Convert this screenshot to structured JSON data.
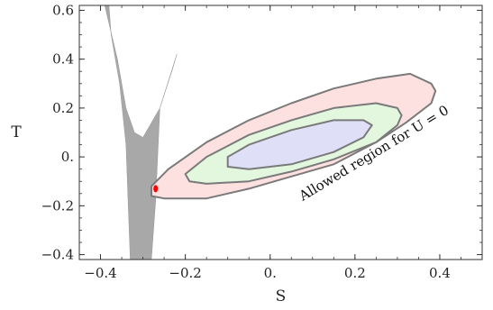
{
  "chart_data": {
    "type": "scatter",
    "title": "",
    "xlabel": "S",
    "ylabel": "T",
    "xlim": [
      -0.45,
      0.5
    ],
    "ylim": [
      -0.42,
      0.62
    ],
    "xticks": [
      -0.4,
      -0.2,
      0.0,
      0.2,
      0.4
    ],
    "xtick_labels": [
      "−0.4",
      "−0.2",
      "0.",
      "0.2",
      "0.4"
    ],
    "yticks": [
      -0.4,
      -0.2,
      0.0,
      0.2,
      0.4,
      0.6
    ],
    "ytick_labels": [
      "−0.4",
      "−0.2",
      "0.",
      "0.2",
      "0.4",
      "0.6"
    ],
    "grid": false,
    "annotation": "Allowed region for U = 0",
    "colors": {
      "outer_fill": "#fde0e0",
      "middle_fill": "#e2f7de",
      "inner_fill": "#dfe0f8",
      "contour_stroke": "#7a7a7a",
      "gray_region": "#a8a8a8",
      "red_point": "#ff0000"
    },
    "ellipses": [
      {
        "level": "outer",
        "boundary": [
          [
            -0.28,
            -0.16
          ],
          [
            -0.25,
            -0.17
          ],
          [
            -0.15,
            -0.17
          ],
          [
            -0.05,
            -0.13
          ],
          [
            0.05,
            -0.08
          ],
          [
            0.15,
            -0.03
          ],
          [
            0.25,
            0.06
          ],
          [
            0.32,
            0.14
          ],
          [
            0.38,
            0.22
          ],
          [
            0.39,
            0.27
          ],
          [
            0.38,
            0.3
          ],
          [
            0.33,
            0.34
          ],
          [
            0.25,
            0.32
          ],
          [
            0.15,
            0.28
          ],
          [
            0.05,
            0.22
          ],
          [
            -0.05,
            0.15
          ],
          [
            -0.15,
            0.06
          ],
          [
            -0.24,
            -0.05
          ],
          [
            -0.28,
            -0.12
          ]
        ]
      },
      {
        "level": "middle",
        "boundary": [
          [
            -0.19,
            -0.1
          ],
          [
            -0.15,
            -0.11
          ],
          [
            -0.05,
            -0.1
          ],
          [
            0.05,
            -0.06
          ],
          [
            0.15,
            -0.01
          ],
          [
            0.25,
            0.06
          ],
          [
            0.3,
            0.13
          ],
          [
            0.31,
            0.17
          ],
          [
            0.3,
            0.2
          ],
          [
            0.25,
            0.22
          ],
          [
            0.15,
            0.2
          ],
          [
            0.05,
            0.15
          ],
          [
            -0.05,
            0.09
          ],
          [
            -0.15,
            0.0
          ],
          [
            -0.2,
            -0.07
          ]
        ]
      },
      {
        "level": "inner",
        "boundary": [
          [
            -0.1,
            -0.04
          ],
          [
            -0.05,
            -0.05
          ],
          [
            0.05,
            -0.03
          ],
          [
            0.15,
            0.02
          ],
          [
            0.22,
            0.08
          ],
          [
            0.24,
            0.13
          ],
          [
            0.22,
            0.15
          ],
          [
            0.15,
            0.15
          ],
          [
            0.05,
            0.11
          ],
          [
            -0.05,
            0.05
          ],
          [
            -0.1,
            0.0
          ]
        ]
      }
    ],
    "gray_region_boundary": [
      [
        -0.39,
        0.62
      ],
      [
        -0.36,
        0.4
      ],
      [
        -0.34,
        0.2
      ],
      [
        -0.32,
        0.1
      ],
      [
        -0.3,
        0.08
      ],
      [
        -0.26,
        0.2
      ],
      [
        -0.22,
        0.42
      ],
      [
        -0.23,
        0.36
      ],
      [
        -0.26,
        0.2
      ],
      [
        -0.27,
        -0.18
      ],
      [
        -0.28,
        -0.42
      ],
      [
        -0.33,
        -0.42
      ],
      [
        -0.34,
        0.05
      ],
      [
        -0.355,
        0.3
      ],
      [
        -0.375,
        0.5
      ],
      [
        -0.38,
        0.62
      ]
    ],
    "points": [
      {
        "x": -0.27,
        "y": -0.13
      }
    ]
  }
}
